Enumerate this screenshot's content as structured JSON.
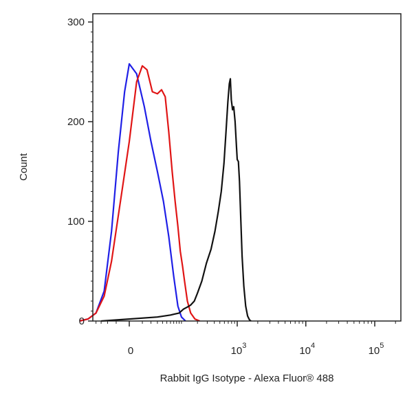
{
  "chart_data": {
    "type": "area",
    "xlabel": "Rabbit IgG Isotype - Alexa Fluor® 488",
    "ylabel": "Count",
    "ylim": [
      0,
      300
    ],
    "y_scale": "linear",
    "x_scale": "biexponential",
    "grid": false,
    "legend": "none",
    "y_ticks": [
      {
        "value": 0,
        "label": "0"
      },
      {
        "value": 100,
        "label": "100"
      },
      {
        "value": 200,
        "label": "200"
      },
      {
        "value": 300,
        "label": "300"
      }
    ],
    "x_ticks": [
      {
        "value": 0,
        "base": "0",
        "exp": ""
      },
      {
        "value": 1000,
        "base": "10",
        "exp": "3"
      },
      {
        "value": 10000,
        "base": "10",
        "exp": "4"
      },
      {
        "value": 100000,
        "base": "10",
        "exp": "5"
      }
    ],
    "series": [
      {
        "color": "#1f1fe6",
        "points": [
          [
            -90,
            0
          ],
          [
            -60,
            2
          ],
          [
            -40,
            8
          ],
          [
            -25,
            30
          ],
          [
            -15,
            90
          ],
          [
            -8,
            170
          ],
          [
            -3,
            230
          ],
          [
            0,
            258
          ],
          [
            5,
            248
          ],
          [
            12,
            215
          ],
          [
            20,
            180
          ],
          [
            30,
            150
          ],
          [
            42,
            120
          ],
          [
            55,
            85
          ],
          [
            70,
            45
          ],
          [
            85,
            15
          ],
          [
            100,
            4
          ],
          [
            120,
            0
          ]
        ]
      },
      {
        "color": "#e01515",
        "points": [
          [
            -90,
            0
          ],
          [
            -60,
            2
          ],
          [
            -40,
            8
          ],
          [
            -25,
            25
          ],
          [
            -15,
            60
          ],
          [
            -5,
            130
          ],
          [
            0,
            180
          ],
          [
            5,
            240
          ],
          [
            10,
            256
          ],
          [
            15,
            252
          ],
          [
            22,
            230
          ],
          [
            30,
            228
          ],
          [
            38,
            232
          ],
          [
            46,
            225
          ],
          [
            55,
            190
          ],
          [
            65,
            150
          ],
          [
            75,
            120
          ],
          [
            85,
            95
          ],
          [
            95,
            70
          ],
          [
            105,
            55
          ],
          [
            115,
            40
          ],
          [
            130,
            20
          ],
          [
            150,
            8
          ],
          [
            180,
            2
          ],
          [
            220,
            0
          ]
        ]
      },
      {
        "color": "#111111",
        "points": [
          [
            -30,
            0
          ],
          [
            0,
            2
          ],
          [
            30,
            4
          ],
          [
            60,
            6
          ],
          [
            90,
            8
          ],
          [
            110,
            12
          ],
          [
            130,
            14
          ],
          [
            150,
            16
          ],
          [
            175,
            20
          ],
          [
            200,
            28
          ],
          [
            240,
            40
          ],
          [
            290,
            58
          ],
          [
            350,
            72
          ],
          [
            410,
            90
          ],
          [
            470,
            110
          ],
          [
            530,
            130
          ],
          [
            590,
            158
          ],
          [
            640,
            190
          ],
          [
            690,
            220
          ],
          [
            730,
            238
          ],
          [
            760,
            243
          ],
          [
            790,
            222
          ],
          [
            830,
            212
          ],
          [
            870,
            215
          ],
          [
            920,
            200
          ],
          [
            970,
            175
          ],
          [
            1000,
            162
          ],
          [
            1040,
            160
          ],
          [
            1080,
            140
          ],
          [
            1130,
            100
          ],
          [
            1180,
            65
          ],
          [
            1250,
            35
          ],
          [
            1330,
            15
          ],
          [
            1420,
            5
          ],
          [
            1520,
            1
          ],
          [
            1600,
            0
          ]
        ]
      }
    ]
  }
}
